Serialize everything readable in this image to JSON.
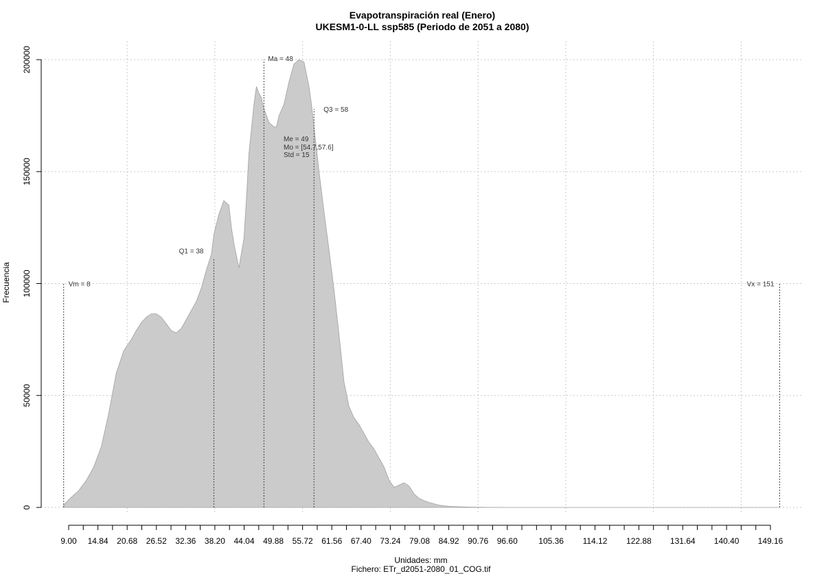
{
  "chart_data": {
    "type": "area",
    "title": "Evapotranspiración real (Enero)",
    "subtitle": "UKESM1-0-LL ssp585 (Periodo de 2051 a 2080)",
    "xlabel": "Unidades: mm",
    "ylabel": "Frecuencia",
    "footer": "Fichero: ETr_d2051-2080_01_COG.tif",
    "xlim": [
      9.0,
      149.16
    ],
    "ylim": [
      0,
      200000
    ],
    "grid": true,
    "fill_color": "#cbcbcb",
    "x_ticks": [
      9.0,
      11.92,
      14.84,
      17.76,
      20.68,
      23.6,
      26.52,
      29.44,
      32.36,
      35.28,
      38.2,
      41.12,
      44.04,
      46.96,
      49.88,
      52.8,
      55.72,
      58.64,
      61.56,
      64.48,
      67.4,
      70.32,
      73.24,
      76.16,
      79.08,
      82.0,
      84.92,
      87.84,
      90.76,
      93.68,
      96.6,
      99.52,
      102.44,
      105.36,
      108.28,
      111.2,
      114.12,
      117.04,
      119.96,
      122.88,
      125.8,
      128.72,
      131.64,
      134.56,
      137.48,
      140.4,
      143.32,
      146.24,
      149.16
    ],
    "x_tick_labels": [
      "9.00",
      "14.84",
      "20.68",
      "26.52",
      "32.36",
      "38.20",
      "44.04",
      "49.88",
      "55.72",
      "61.56",
      "67.40",
      "73.24",
      "79.08",
      "84.92",
      "90.76",
      "96.60",
      "105.36",
      "114.12",
      "122.88",
      "131.64",
      "140.40",
      "149.16"
    ],
    "x_tick_label_values": [
      9.0,
      14.84,
      20.68,
      26.52,
      32.36,
      38.2,
      44.04,
      49.88,
      55.72,
      61.56,
      67.4,
      73.24,
      79.08,
      84.92,
      90.76,
      96.6,
      105.36,
      114.12,
      122.88,
      131.64,
      140.4,
      149.16
    ],
    "y_ticks": [
      0,
      50000,
      100000,
      150000,
      200000
    ],
    "y_tick_labels": [
      "0",
      "50000",
      "100000",
      "150000",
      "200000"
    ],
    "x_grid": [
      20.68,
      38.2,
      55.72,
      73.24,
      90.76,
      108.28,
      125.8,
      143.32
    ],
    "series": [
      {
        "x": [
          8.0,
          9.0,
          10.0,
          11.0,
          12.5,
          14.0,
          15.5,
          17.0,
          18.5,
          20.0,
          21.5,
          22.5,
          23.5,
          24.5,
          25.5,
          26.5,
          27.5,
          28.5,
          29.5,
          30.5,
          31.5,
          32.5,
          33.5,
          34.5,
          35.5,
          36.5,
          37.5,
          38.0,
          39.0,
          40.0,
          41.0,
          41.5,
          42.0,
          43.0,
          44.0,
          44.5,
          45.0,
          46.0,
          46.5,
          47.0,
          47.5,
          48.0,
          49.0,
          50.0,
          50.5,
          51.0,
          52.0,
          53.0,
          54.0,
          55.0,
          56.0,
          57.0,
          57.5,
          58.0,
          59.0,
          60.0,
          61.0,
          62.0,
          63.0,
          64.0,
          65.0,
          66.0,
          67.0,
          68.0,
          69.0,
          70.0,
          71.0,
          72.0,
          73.0,
          74.0,
          75.0,
          76.0,
          77.0,
          78.0,
          79.0,
          80.0,
          81.0,
          82.0,
          83.0,
          84.0,
          85.0,
          87.0,
          89.0,
          91.0,
          93.0,
          95.0,
          97.0,
          99.0,
          102.0,
          106.0,
          110.0,
          120.0,
          130.0,
          140.0,
          151.0
        ],
        "y": [
          1000,
          3500,
          5500,
          7500,
          12000,
          18000,
          27000,
          42000,
          60000,
          70000,
          75000,
          79000,
          82500,
          85000,
          86500,
          86500,
          85000,
          82000,
          79000,
          78000,
          80000,
          84000,
          88000,
          92000,
          98000,
          106000,
          113000,
          122000,
          131000,
          137000,
          135000,
          125000,
          118000,
          107000,
          120000,
          138000,
          158000,
          180000,
          188000,
          185000,
          183000,
          178000,
          172000,
          170000,
          170000,
          175000,
          180000,
          190000,
          198000,
          200000,
          199000,
          188000,
          180000,
          170000,
          150000,
          132000,
          115000,
          97000,
          77000,
          56000,
          45000,
          40000,
          37000,
          33000,
          29000,
          26000,
          22000,
          18000,
          12000,
          9000,
          10000,
          11000,
          9500,
          6000,
          4000,
          3000,
          2200,
          1600,
          1000,
          700,
          500,
          300,
          150,
          80,
          40,
          20,
          10,
          5,
          0,
          0,
          0,
          0,
          0,
          0,
          0
        ]
      }
    ],
    "vlines": [
      {
        "name": "Vm",
        "x": 8,
        "y_top": 100000,
        "label": "Vm = 8"
      },
      {
        "name": "Q1",
        "x": 38,
        "y_top": 111000,
        "label": "Q1 = 38"
      },
      {
        "name": "Ma",
        "x": 48,
        "y_top": 200000,
        "label": "Ma = 48"
      },
      {
        "name": "Q3",
        "x": 58,
        "y_top": 178000,
        "label": "Q3 = 58"
      },
      {
        "name": "Vx",
        "x": 151,
        "y_top": 100000,
        "label": "Vx = 151"
      }
    ],
    "stats": [
      "Me = 49",
      "Mo = [54.7,57.6]",
      "Std = 15"
    ]
  }
}
